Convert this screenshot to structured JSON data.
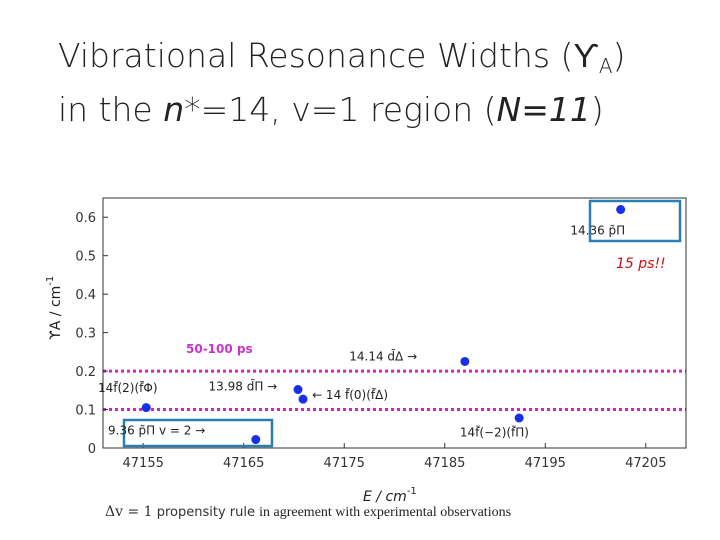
{
  "slide": {
    "title_line1_prefix": "Vibrational Resonance Widths (",
    "title_symbol": "ϒ",
    "title_sub": "A",
    "title_line1_suffix": ")",
    "title_line2_prefix": "in the ",
    "title_n": "n",
    "title_line2_mid": "*=14, v=1 region (",
    "title_N": "N=11",
    "title_line2_suffix": ")"
  },
  "footer": {
    "math": "Δv = 1",
    "propensity": "propensity rule",
    "rest": "in agreement with experimental observations"
  },
  "chart_data": {
    "type": "scatter",
    "xlabel": "E / cm",
    "xlabel_sup": "-1",
    "ylabel": "ϒA / cm",
    "ylabel_sup": "-1",
    "xlim": [
      47151,
      47209
    ],
    "ylim": [
      0,
      0.65
    ],
    "xticks": [
      47155,
      47165,
      47175,
      47185,
      47195,
      47205
    ],
    "yticks": [
      0,
      0.1,
      0.2,
      0.3,
      0.4,
      0.5,
      0.6
    ],
    "ytick_labels": [
      "0",
      "0.1",
      "0.2",
      "0.3",
      "0.4",
      "0.5",
      "0.6"
    ],
    "points": [
      {
        "x": 47155.3,
        "y": 0.105
      },
      {
        "x": 47166.2,
        "y": 0.022
      },
      {
        "x": 47170.4,
        "y": 0.152
      },
      {
        "x": 47170.9,
        "y": 0.127
      },
      {
        "x": 47187.0,
        "y": 0.225
      },
      {
        "x": 47192.4,
        "y": 0.078
      },
      {
        "x": 47202.5,
        "y": 0.62
      }
    ],
    "point_color": "#1a2fe8",
    "hlines": [
      0.2,
      0.1
    ],
    "hline_color": "#d81fd0",
    "annotations": [
      {
        "text": "14f̃(2)(f̃Φ)",
        "x": 47150.5,
        "y": 0.145
      },
      {
        "text": "13.98 d̃Π →",
        "x": 47161.5,
        "y": 0.15
      },
      {
        "text": "← 14 f̃(0)(f̃Δ)",
        "x": 47171.8,
        "y": 0.127
      },
      {
        "text": "14.14 d̃Δ →",
        "x": 47175.5,
        "y": 0.228
      },
      {
        "text": "14f̃(−2)(f̃Π)",
        "x": 47186.5,
        "y": 0.03
      },
      {
        "text": "9.36 p̃Π v = 2 →",
        "x": 47151.5,
        "y": 0.035
      },
      {
        "text": "14.36 p̃Π",
        "x": 47197.5,
        "y": 0.555
      }
    ],
    "callouts": [
      {
        "text": "15 ps!!",
        "color": "#cc1111"
      },
      {
        "text": "50-100 ps",
        "color": "#cc33cc"
      }
    ],
    "box_color": "#2a7fb0"
  }
}
